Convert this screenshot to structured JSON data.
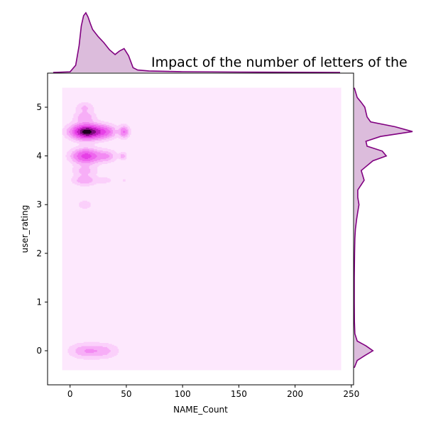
{
  "chart_data": {
    "type": "kde-jointplot",
    "title": "Impact of the number of letters of the",
    "xlabel": "NAME_Count",
    "ylabel": "user_rating",
    "xlim": [
      -20,
      252
    ],
    "ylim": [
      -0.7,
      5.7
    ],
    "xticks": [
      0,
      50,
      100,
      150,
      200,
      250
    ],
    "yticks": [
      0,
      1,
      2,
      3,
      4,
      5
    ],
    "grid": false,
    "colors": {
      "marginal_line": "#800080",
      "marginal_fill": "#dcbcdc",
      "kde_base": "#fde8fd"
    },
    "kde_extent": {
      "x": [
        -7,
        241
      ],
      "y": [
        -0.4,
        5.4
      ]
    },
    "density_clusters": [
      {
        "x": 15,
        "y": 4.5,
        "sx": 9,
        "sy": 0.1,
        "w": 1.0
      },
      {
        "x": 32,
        "y": 4.5,
        "sx": 6,
        "sy": 0.09,
        "w": 0.32
      },
      {
        "x": 48,
        "y": 4.5,
        "sx": 3,
        "sy": 0.08,
        "w": 0.35
      },
      {
        "x": 14,
        "y": 4.0,
        "sx": 8,
        "sy": 0.1,
        "w": 0.55
      },
      {
        "x": 32,
        "y": 4.0,
        "sx": 6,
        "sy": 0.08,
        "w": 0.22
      },
      {
        "x": 47,
        "y": 4.0,
        "sx": 2,
        "sy": 0.05,
        "w": 0.18
      },
      {
        "x": 13,
        "y": 4.8,
        "sx": 6,
        "sy": 0.08,
        "w": 0.2
      },
      {
        "x": 13,
        "y": 5.0,
        "sx": 5,
        "sy": 0.07,
        "w": 0.14
      },
      {
        "x": 13,
        "y": 3.7,
        "sx": 7,
        "sy": 0.08,
        "w": 0.16
      },
      {
        "x": 13,
        "y": 3.5,
        "sx": 7,
        "sy": 0.07,
        "w": 0.2
      },
      {
        "x": 31,
        "y": 3.5,
        "sx": 5,
        "sy": 0.05,
        "w": 0.08
      },
      {
        "x": 48,
        "y": 3.5,
        "sx": 1.5,
        "sy": 0.04,
        "w": 0.06
      },
      {
        "x": 13,
        "y": 3.0,
        "sx": 4,
        "sy": 0.06,
        "w": 0.12
      },
      {
        "x": 15,
        "y": 0.0,
        "sx": 10,
        "sy": 0.1,
        "w": 0.22
      },
      {
        "x": 32,
        "y": 0.0,
        "sx": 8,
        "sy": 0.1,
        "w": 0.12
      }
    ],
    "x_marginal": {
      "x": [
        -15,
        0,
        5,
        8,
        10,
        12,
        14,
        16,
        18,
        20,
        25,
        30,
        35,
        40,
        44,
        48,
        52,
        56,
        60,
        70,
        100,
        150,
        200,
        240
      ],
      "density": [
        0,
        0.01,
        0.12,
        0.45,
        0.78,
        0.95,
        1.0,
        0.93,
        0.82,
        0.72,
        0.6,
        0.5,
        0.38,
        0.3,
        0.36,
        0.4,
        0.28,
        0.08,
        0.04,
        0.025,
        0.012,
        0.006,
        0.002,
        0
      ]
    },
    "y_marginal": {
      "y": [
        -0.35,
        -0.2,
        -0.1,
        0.0,
        0.1,
        0.2,
        0.35,
        0.6,
        1.0,
        1.5,
        2.0,
        2.3,
        2.5,
        2.7,
        2.85,
        3.0,
        3.15,
        3.3,
        3.5,
        3.7,
        3.8,
        3.9,
        4.0,
        4.1,
        4.2,
        4.3,
        4.4,
        4.5,
        4.6,
        4.7,
        4.8,
        4.9,
        5.0,
        5.1,
        5.2,
        5.4
      ],
      "density": [
        0,
        0.05,
        0.18,
        0.32,
        0.2,
        0.05,
        0.01,
        0.002,
        0,
        0,
        0.005,
        0.01,
        0.02,
        0.04,
        0.06,
        0.08,
        0.06,
        0.06,
        0.17,
        0.12,
        0.22,
        0.32,
        0.55,
        0.48,
        0.22,
        0.2,
        0.45,
        1.0,
        0.7,
        0.28,
        0.22,
        0.2,
        0.18,
        0.12,
        0.05,
        0
      ]
    }
  }
}
